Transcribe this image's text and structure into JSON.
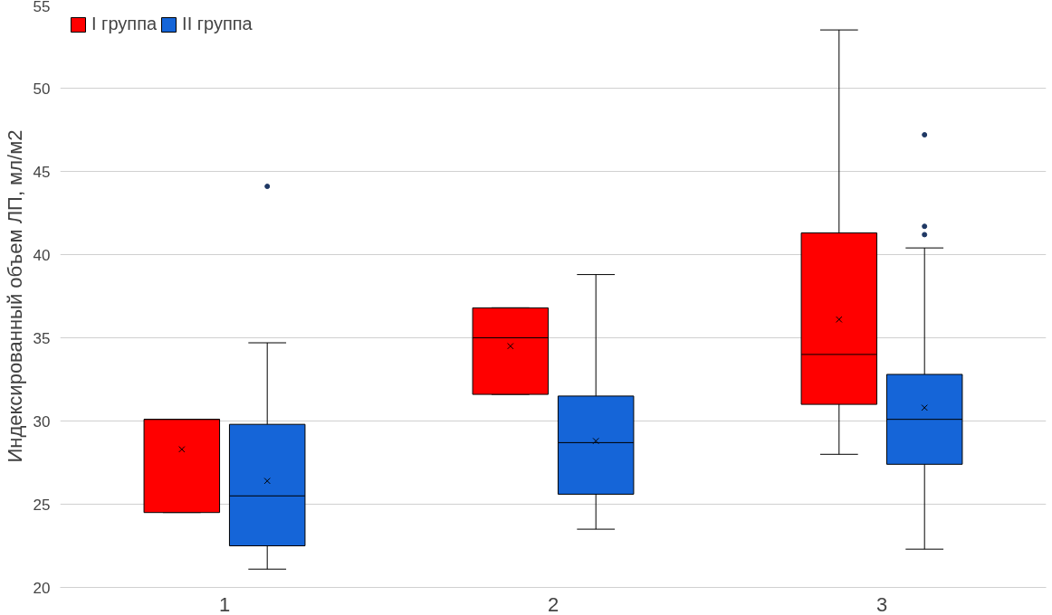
{
  "chart_data": {
    "type": "box",
    "ylabel": "Индексированный объем ЛП, мл/м2",
    "categories": [
      "1",
      "2",
      "3"
    ],
    "ylim": [
      20,
      55
    ],
    "yticks": [
      20,
      25,
      30,
      35,
      40,
      45,
      50,
      55
    ],
    "grid": "y",
    "legend": "top left",
    "series": [
      {
        "name": "I группа",
        "color": "#ff0000",
        "boxes": [
          {
            "low": 24.5,
            "q1": 24.5,
            "median": 30.1,
            "q3": 30.1,
            "high": 30.1,
            "mean": 28.3
          },
          {
            "low": 31.6,
            "q1": 31.6,
            "median": 35.0,
            "q3": 36.8,
            "high": 36.8,
            "mean": 34.5
          },
          {
            "low": 28.0,
            "q1": 31.0,
            "median": 34.0,
            "q3": 41.3,
            "high": 53.5,
            "mean": 36.1
          }
        ]
      },
      {
        "name": "II группа",
        "color": "#1565d8",
        "boxes": [
          {
            "low": 21.1,
            "q1": 22.5,
            "median": 25.5,
            "q3": 29.8,
            "high": 34.7,
            "mean": 26.4,
            "outliers": [
              44.1
            ]
          },
          {
            "low": 23.5,
            "q1": 25.6,
            "median": 28.7,
            "q3": 31.5,
            "high": 38.8,
            "mean": 28.8
          },
          {
            "low": 22.3,
            "q1": 27.4,
            "median": 30.1,
            "q3": 32.8,
            "high": 40.4,
            "mean": 30.8,
            "outliers": [
              47.2,
              41.7,
              41.2
            ]
          }
        ]
      }
    ]
  }
}
